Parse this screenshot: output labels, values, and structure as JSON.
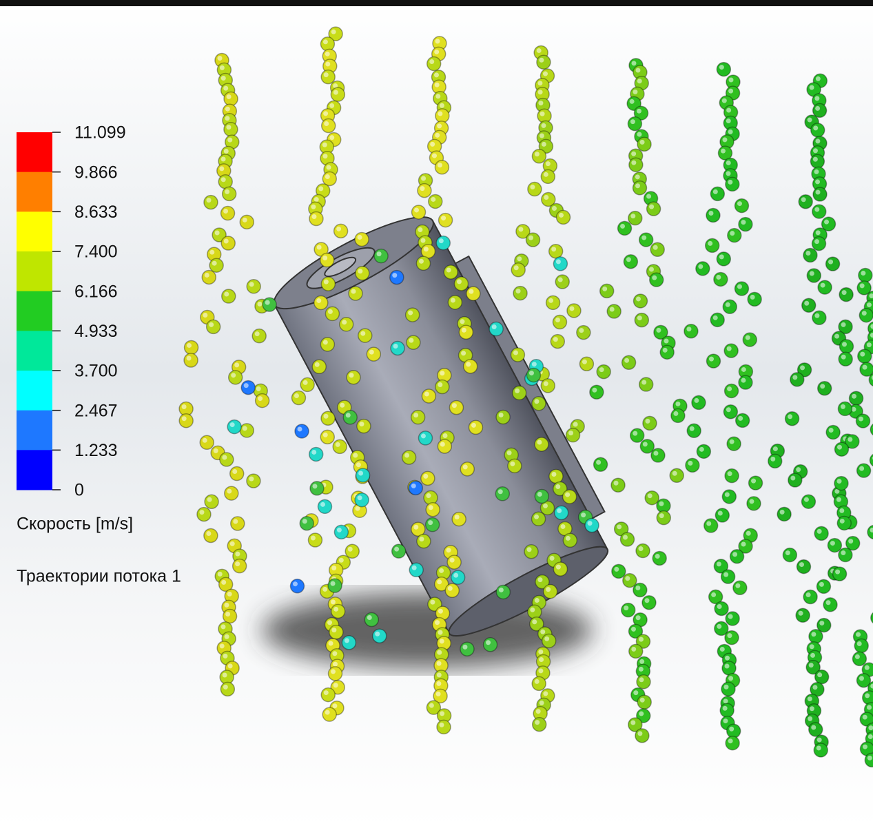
{
  "legend": {
    "ticks": [
      "11.099",
      "9.866",
      "8.633",
      "7.400",
      "6.166",
      "4.933",
      "3.700",
      "2.467",
      "1.233",
      "0"
    ],
    "colors": [
      "#ff0000",
      "#ff7f00",
      "#ffff00",
      "#bfe600",
      "#22cc22",
      "#00e89a",
      "#00ffff",
      "#1e78ff",
      "#0000ff"
    ],
    "quantity": "Скорость [m/s]",
    "caption": "Траектории потока 1"
  }
}
